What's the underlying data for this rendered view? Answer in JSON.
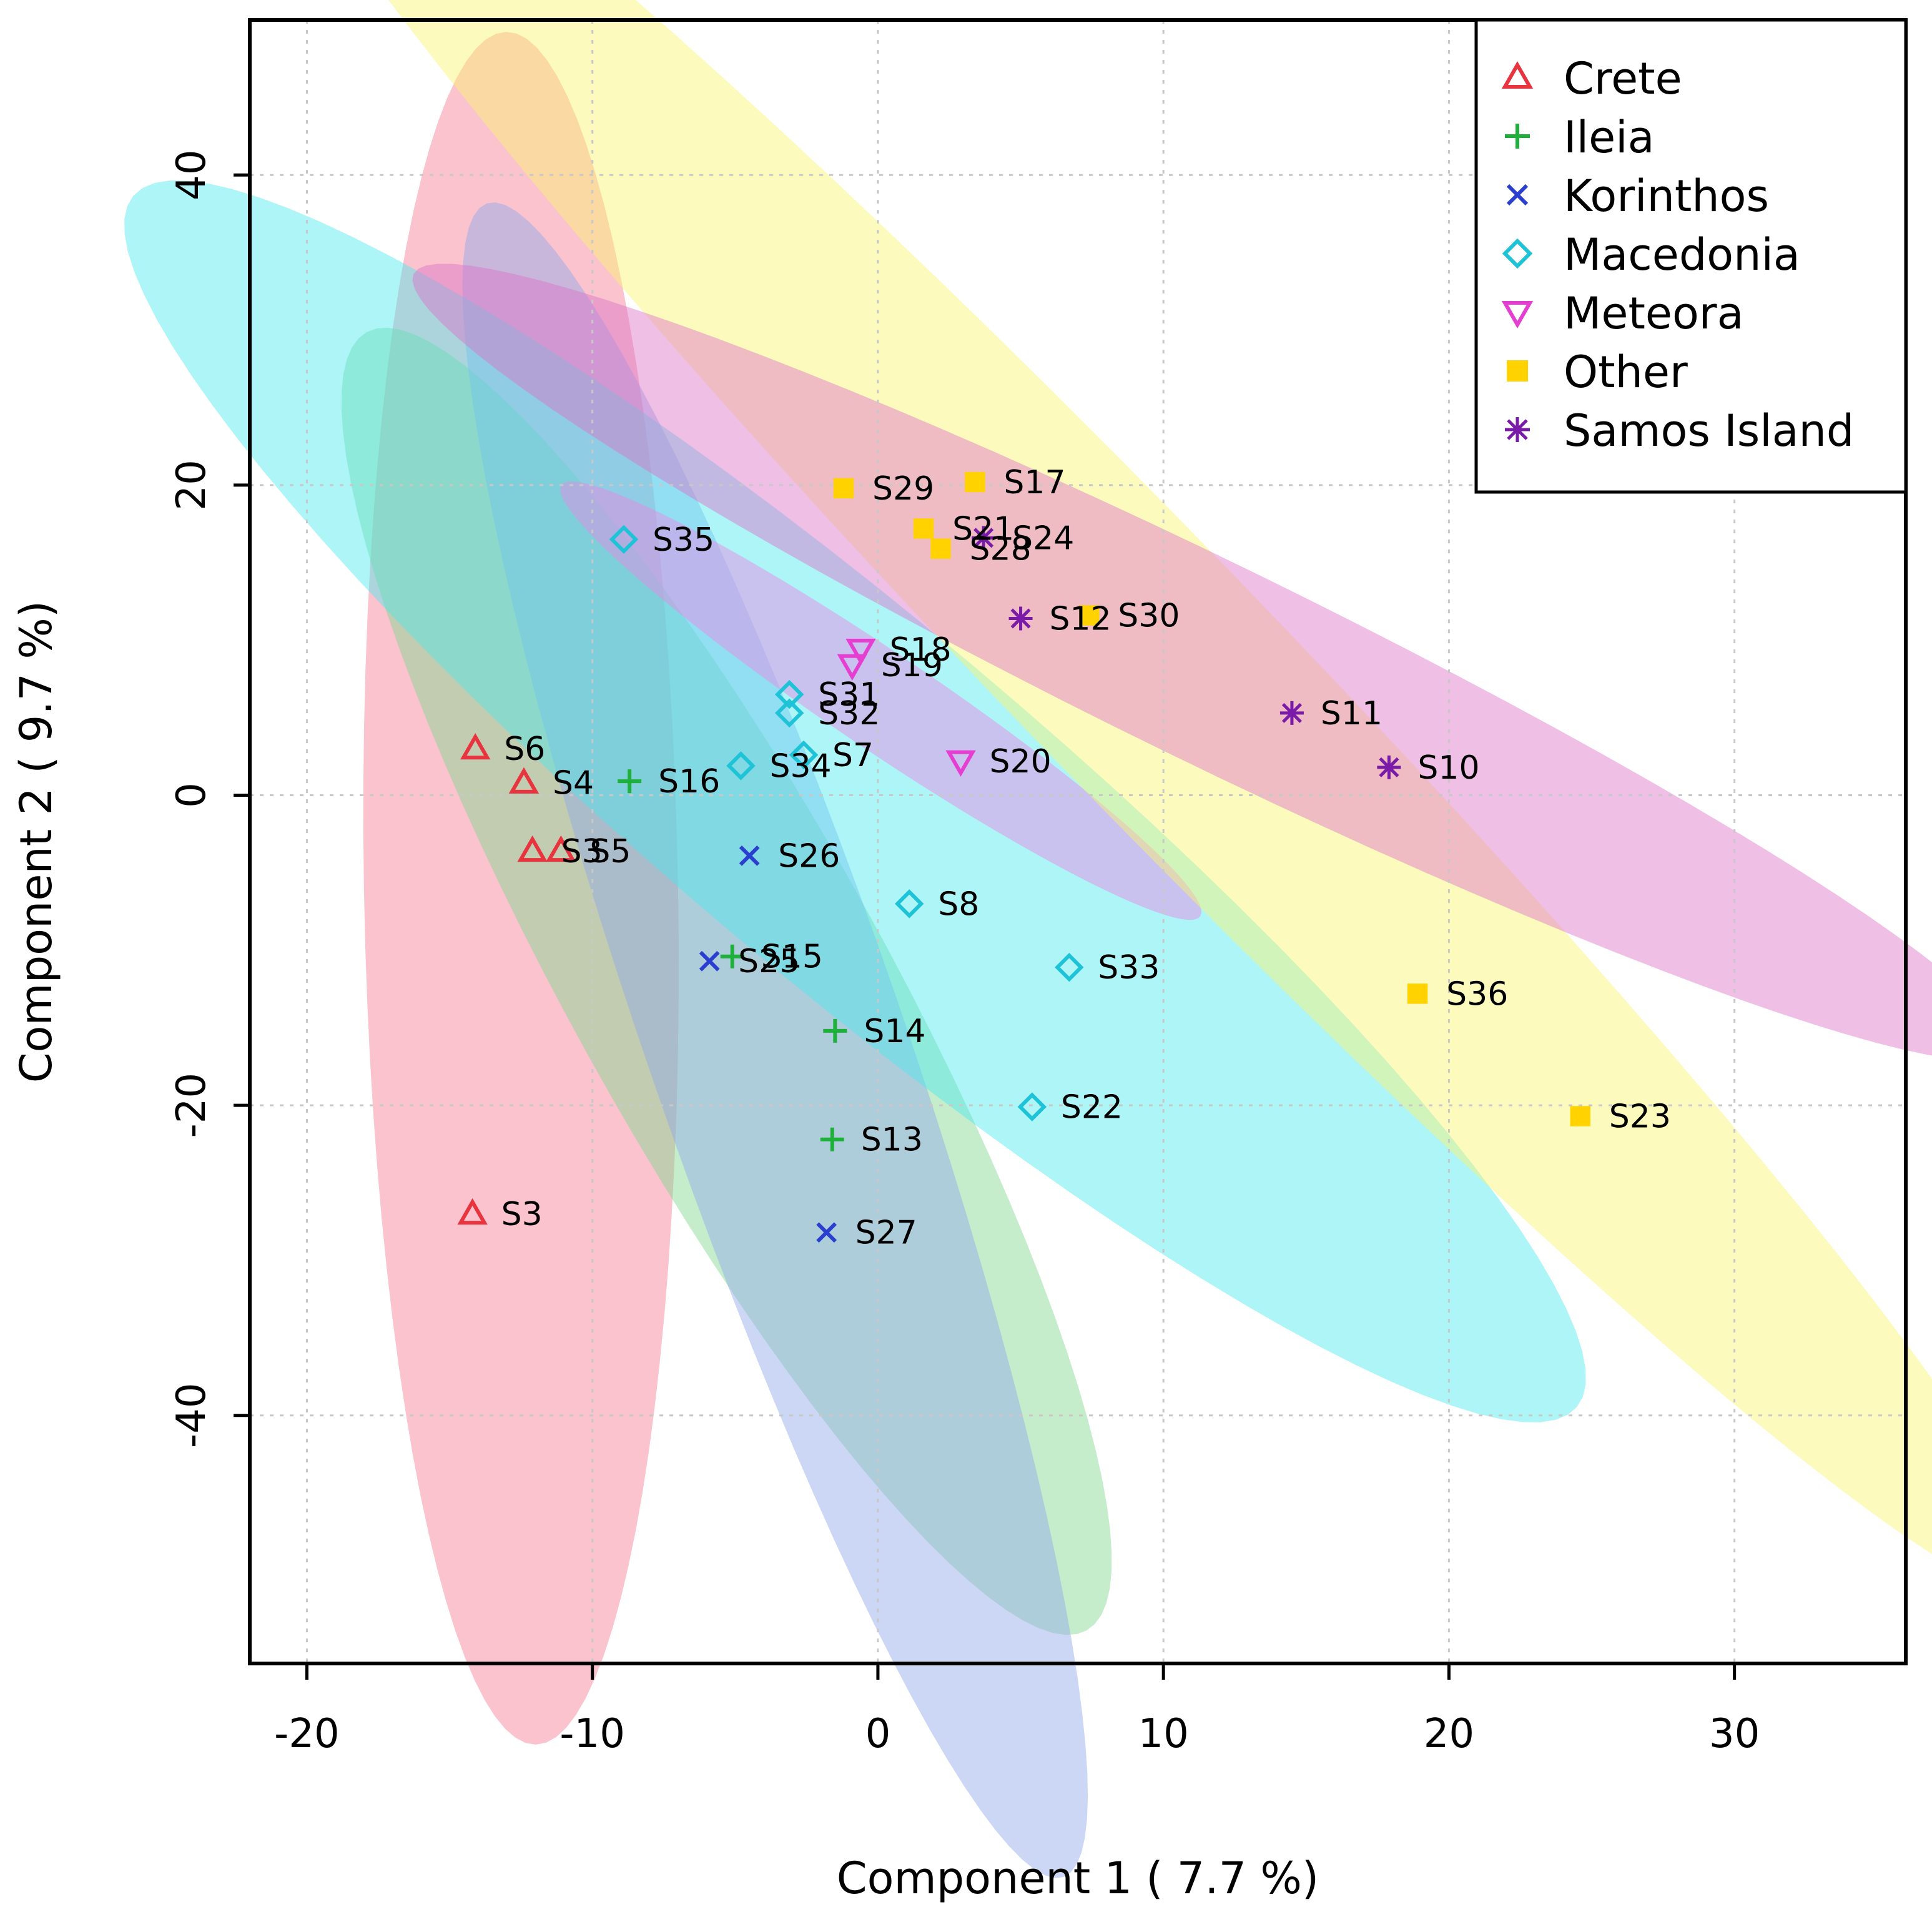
{
  "chart_data": {
    "type": "scatter",
    "xlabel": "Component 1 ( 7.7 %)",
    "ylabel": "Component 2 ( 9.7 %)",
    "xlim": [
      -22,
      36
    ],
    "ylim": [
      -56,
      50
    ],
    "xticks": [
      -20,
      -10,
      0,
      10,
      20,
      30
    ],
    "yticks": [
      -40,
      -20,
      0,
      20,
      40
    ],
    "x_tick_labels": [
      "-20",
      "-10",
      "0",
      "10",
      "20",
      "30"
    ],
    "y_tick_labels": [
      "-40",
      "-20",
      "0",
      "20",
      "40"
    ],
    "grid": true,
    "legend_position": "top-right",
    "series": [
      {
        "name": "Crete",
        "color": "#e8343f",
        "marker": "triangle-up",
        "ellipse": {
          "color": "#f57a93",
          "cx": -12.5,
          "cy": -6,
          "major": 30,
          "minor": 5.5,
          "angle_deg": -89
        },
        "points": [
          {
            "label": "S6",
            "x": -14.1,
            "y": 3.0
          },
          {
            "label": "S4",
            "x": -12.4,
            "y": 0.8
          },
          {
            "label": "S3",
            "x": -12.1,
            "y": -3.6
          },
          {
            "label": "S5",
            "x": -11.1,
            "y": -3.6
          },
          {
            "label": "S3",
            "x": -14.2,
            "y": -27.0
          }
        ]
      },
      {
        "name": "Ileia",
        "color": "#1fb03c",
        "marker": "plus",
        "ellipse": {
          "color": "#7ed88c",
          "cx": -5.3,
          "cy": -12,
          "major": 26,
          "minor": 5.5,
          "angle_deg": -61
        },
        "points": [
          {
            "label": "S16",
            "x": -8.7,
            "y": 0.9
          },
          {
            "label": "S15",
            "x": -5.1,
            "y": -10.4
          },
          {
            "label": "S14",
            "x": -1.5,
            "y": -15.2
          },
          {
            "label": "S13",
            "x": -1.6,
            "y": -22.2
          }
        ]
      },
      {
        "name": "Korinthos",
        "color": "#2a3fcf",
        "marker": "x",
        "ellipse": {
          "color": "#8ea6ec",
          "cx": -3.6,
          "cy": -15.8,
          "major": 31,
          "minor": 4.5,
          "angle_deg": -71
        },
        "points": [
          {
            "label": "S26",
            "x": -4.5,
            "y": -3.9
          },
          {
            "label": "S25",
            "x": -5.9,
            "y": -10.7
          },
          {
            "label": "S27",
            "x": -1.8,
            "y": -28.2
          }
        ]
      },
      {
        "name": "Macedonia",
        "color": "#1ec3d8",
        "marker": "diamond",
        "ellipse": {
          "color": "#4ce8f0",
          "cx": -0.8,
          "cy": -0.4,
          "major": 33,
          "minor": 6.3,
          "angle_deg": -40
        },
        "points": [
          {
            "label": "S35",
            "x": -8.9,
            "y": 16.5
          },
          {
            "label": "S31",
            "x": -3.1,
            "y": 6.5
          },
          {
            "label": "S32",
            "x": -3.1,
            "y": 5.3
          },
          {
            "label": "S34",
            "x": -4.8,
            "y": 1.9
          },
          {
            "label": "S7",
            "x": -2.6,
            "y": 2.6
          },
          {
            "label": "S8",
            "x": 1.1,
            "y": -7.0
          },
          {
            "label": "S33",
            "x": 6.7,
            "y": -11.1
          },
          {
            "label": "S22",
            "x": 5.4,
            "y": -20.1
          }
        ]
      },
      {
        "name": "Meteora",
        "color": "#e53fd2",
        "marker": "triangle-down",
        "ellipse": {
          "color": "#ee84e3",
          "cx": 0.1,
          "cy": 6.1,
          "major": 13.5,
          "minor": 1.7,
          "angle_deg": -34
        },
        "points": [
          {
            "label": "S18",
            "x": -0.6,
            "y": 9.4
          },
          {
            "label": "S19",
            "x": -0.9,
            "y": 8.4
          },
          {
            "label": "S20",
            "x": 2.9,
            "y": 2.2
          }
        ]
      },
      {
        "name": "Other",
        "color": "#ffd200",
        "marker": "square",
        "ellipse": {
          "color": "#fbf56c",
          "cx": 9.3,
          "cy": 8.3,
          "major": 45,
          "minor": 4.5,
          "angle_deg": -46
        },
        "points": [
          {
            "label": "S29",
            "x": -1.2,
            "y": 19.8
          },
          {
            "label": "S17",
            "x": 3.4,
            "y": 20.2
          },
          {
            "label": "S21",
            "x": 1.6,
            "y": 17.2
          },
          {
            "label": "S28",
            "x": 2.2,
            "y": 15.9
          },
          {
            "label": "S30",
            "x": 7.4,
            "y": 11.6
          },
          {
            "label": "S36",
            "x": 18.9,
            "y": -12.8
          },
          {
            "label": "S23",
            "x": 24.6,
            "y": -20.7
          }
        ]
      },
      {
        "name": "Samos Island",
        "color": "#7a1aa8",
        "marker": "asterisk",
        "ellipse": {
          "color": "#dc72c8",
          "cx": 11.6,
          "cy": 8.6,
          "major": 31,
          "minor": 3.5,
          "angle_deg": -26
        },
        "points": [
          {
            "label": "S24",
            "x": 3.7,
            "y": 16.6
          },
          {
            "label": "S12",
            "x": 5.0,
            "y": 11.4
          },
          {
            "label": "S11",
            "x": 14.5,
            "y": 5.3
          },
          {
            "label": "S10",
            "x": 17.9,
            "y": 1.8
          }
        ]
      }
    ]
  }
}
